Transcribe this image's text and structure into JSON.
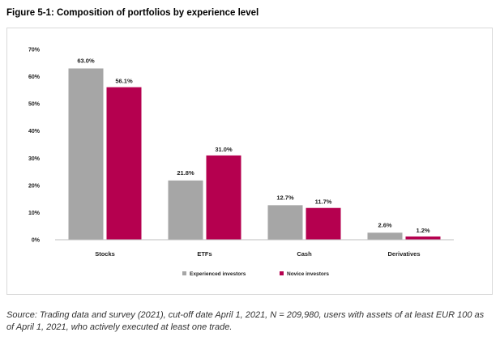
{
  "figure_title": "Figure 5-1: Composition of portfolios by experience level",
  "source_note": "Source: Trading data and survey (2021), cut-off date April 1, 2021, N = 209,980, users with assets of at least EUR 100 as of April 1, 2021, who actively executed at least one trade.",
  "colors": {
    "experienced": "#a6a6a6",
    "novice": "#b5004f",
    "axis": "#bfbfbf"
  },
  "chart_data": {
    "type": "bar",
    "title": "Figure 5-1: Composition of portfolios by experience level",
    "xlabel": "",
    "ylabel": "",
    "categories": [
      "Stocks",
      "ETFs",
      "Cash",
      "Derivatives"
    ],
    "series": [
      {
        "name": "Experienced investors",
        "values": [
          63.0,
          21.8,
          12.7,
          2.6
        ],
        "labels": [
          "63.0%",
          "21.8%",
          "12.7%",
          "2.6%"
        ]
      },
      {
        "name": "Novice investors",
        "values": [
          56.1,
          31.0,
          11.7,
          1.2
        ],
        "labels": [
          "56.1%",
          "31.0%",
          "11.7%",
          "1.2%"
        ]
      }
    ],
    "ylim": [
      0,
      70
    ],
    "yticks": [
      0,
      10,
      20,
      30,
      40,
      50,
      60,
      70
    ],
    "ytick_labels": [
      "0%",
      "10%",
      "20%",
      "30%",
      "40%",
      "50%",
      "60%",
      "70%"
    ],
    "grid": false,
    "legend_position": "bottom-center"
  }
}
